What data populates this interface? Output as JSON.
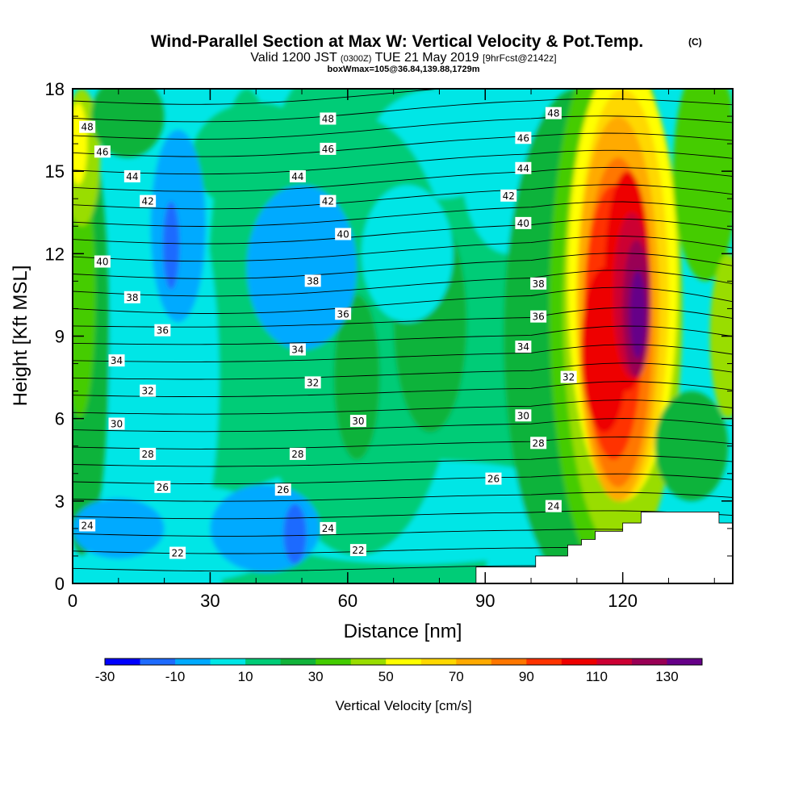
{
  "title": "Wind-Parallel Section at Max W: Vertical Velocity & Pot.Temp.",
  "title_mark": "(C)",
  "subtitle_valid": "Valid 1200 JST",
  "subtitle_utc": "(0300Z)",
  "subtitle_date": "TUE 21 May 2019",
  "subtitle_fcst": "[9hrFcst@2142z]",
  "subtitle_box": "boxWmax=105@36.84,139.88,1729m",
  "chart_data": {
    "type": "contour",
    "xlabel": "Distance [nm]",
    "ylabel": "Height [Kft MSL]",
    "xlim": [
      0,
      144
    ],
    "ylim": [
      0,
      18
    ],
    "x_ticks": [
      "0",
      "30",
      "60",
      "90",
      "120"
    ],
    "y_ticks": [
      "0",
      "3",
      "6",
      "9",
      "12",
      "15",
      "18"
    ],
    "colorbar": {
      "label": "Vertical Velocity [cm/s]",
      "tick_labels": [
        "-30",
        "-10",
        "10",
        "30",
        "50",
        "70",
        "90",
        "110",
        "130"
      ],
      "levels": [
        -30,
        -20,
        -10,
        0,
        10,
        20,
        30,
        40,
        50,
        60,
        70,
        80,
        90,
        100,
        110,
        120,
        130,
        140
      ],
      "colors": [
        "#0000ff",
        "#1e6bff",
        "#00aaff",
        "#00e6e6",
        "#00cc77",
        "#11b33a",
        "#44cc00",
        "#99dd00",
        "#ffff00",
        "#ffd800",
        "#ffaa00",
        "#ff7700",
        "#ff3300",
        "#ee0000",
        "#cc0033",
        "#990055",
        "#660088"
      ]
    },
    "theta_contours": {
      "labeled_values": [
        22,
        24,
        26,
        28,
        30,
        32,
        34,
        36,
        38,
        40,
        42,
        44,
        46,
        48
      ],
      "labels": [
        {
          "text": "48",
          "x": 3.2,
          "y": 16.6
        },
        {
          "text": "46",
          "x": 6.5,
          "y": 15.7
        },
        {
          "text": "44",
          "x": 13,
          "y": 14.8
        },
        {
          "text": "42",
          "x": 16.4,
          "y": 13.9
        },
        {
          "text": "40",
          "x": 6.5,
          "y": 11.7
        },
        {
          "text": "38",
          "x": 13,
          "y": 10.4
        },
        {
          "text": "36",
          "x": 19.6,
          "y": 9.2
        },
        {
          "text": "34",
          "x": 9.6,
          "y": 8.1
        },
        {
          "text": "32",
          "x": 16.4,
          "y": 7.0
        },
        {
          "text": "30",
          "x": 9.6,
          "y": 5.8
        },
        {
          "text": "28",
          "x": 16.4,
          "y": 4.7
        },
        {
          "text": "26",
          "x": 19.6,
          "y": 3.5
        },
        {
          "text": "24",
          "x": 3.2,
          "y": 2.1
        },
        {
          "text": "22",
          "x": 22.9,
          "y": 1.1
        },
        {
          "text": "48",
          "x": 55.7,
          "y": 16.9
        },
        {
          "text": "46",
          "x": 55.7,
          "y": 15.8
        },
        {
          "text": "44",
          "x": 49.1,
          "y": 14.8
        },
        {
          "text": "42",
          "x": 55.7,
          "y": 13.9
        },
        {
          "text": "40",
          "x": 59,
          "y": 12.7
        },
        {
          "text": "38",
          "x": 52.4,
          "y": 11.0
        },
        {
          "text": "36",
          "x": 59,
          "y": 9.8
        },
        {
          "text": "34",
          "x": 49.1,
          "y": 8.5
        },
        {
          "text": "32",
          "x": 52.4,
          "y": 7.3
        },
        {
          "text": "30",
          "x": 62.3,
          "y": 5.9
        },
        {
          "text": "28",
          "x": 49.1,
          "y": 4.7
        },
        {
          "text": "26",
          "x": 45.9,
          "y": 3.4
        },
        {
          "text": "24",
          "x": 55.7,
          "y": 2.0
        },
        {
          "text": "22",
          "x": 62.3,
          "y": 1.2
        },
        {
          "text": "48",
          "x": 104.9,
          "y": 17.1
        },
        {
          "text": "46",
          "x": 98.3,
          "y": 16.2
        },
        {
          "text": "44",
          "x": 98.3,
          "y": 15.1
        },
        {
          "text": "42",
          "x": 95.1,
          "y": 14.1
        },
        {
          "text": "40",
          "x": 98.3,
          "y": 13.1
        },
        {
          "text": "38",
          "x": 101.6,
          "y": 10.9
        },
        {
          "text": "36",
          "x": 101.6,
          "y": 9.7
        },
        {
          "text": "34",
          "x": 98.3,
          "y": 8.6
        },
        {
          "text": "32",
          "x": 108.2,
          "y": 7.5
        },
        {
          "text": "30",
          "x": 98.3,
          "y": 6.1
        },
        {
          "text": "28",
          "x": 101.6,
          "y": 5.1
        },
        {
          "text": "26",
          "x": 91.8,
          "y": 3.8
        },
        {
          "text": "24",
          "x": 104.9,
          "y": 2.8
        }
      ]
    },
    "terrain_steps": [
      {
        "x": 88,
        "top": 0.6
      },
      {
        "x": 101,
        "top": 1.0
      },
      {
        "x": 108,
        "top": 1.4
      },
      {
        "x": 111,
        "top": 1.6
      },
      {
        "x": 114,
        "top": 1.9
      },
      {
        "x": 120,
        "top": 2.2
      },
      {
        "x": 124,
        "top": 2.6
      },
      {
        "x": 131,
        "top": 2.6
      },
      {
        "x": 141,
        "top": 2.2
      }
    ]
  }
}
